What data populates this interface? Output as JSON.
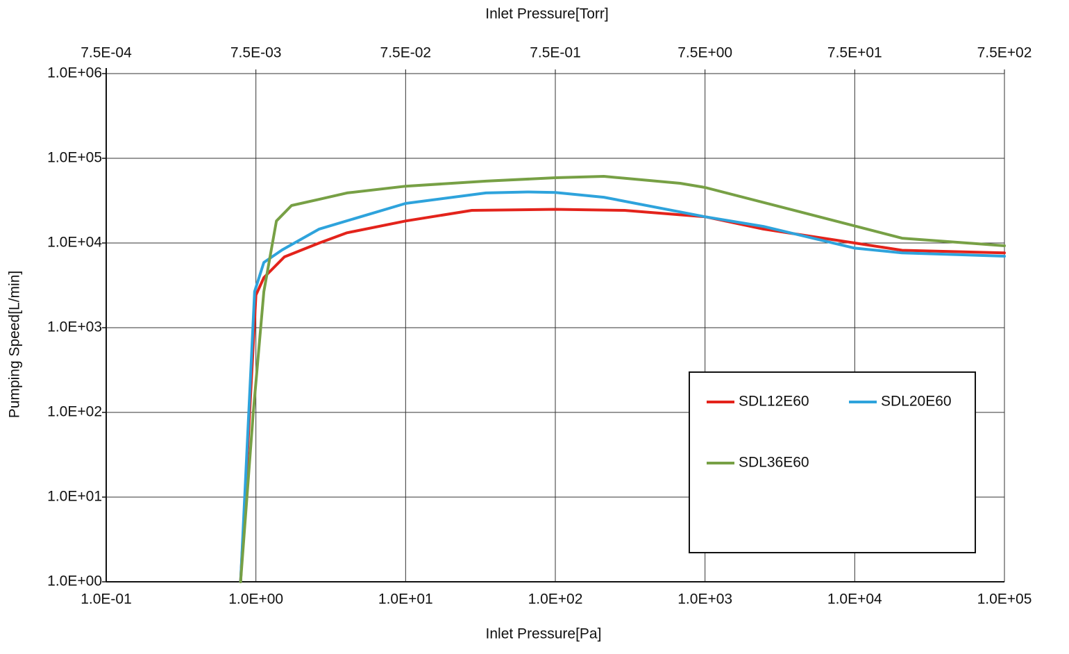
{
  "chart_data": {
    "type": "line",
    "x_label": "Inlet Pressure[Pa]",
    "x2_label": "Inlet Pressure[Torr]",
    "y_label": "Pumping Speed[L/min]",
    "x_scale": "log",
    "y_scale": "log",
    "grid": true,
    "legend": "lower right",
    "xlim": [
      0.1,
      100000
    ],
    "xticks": [
      {
        "value": 0.1,
        "label": "1.0E-01"
      },
      {
        "value": 1,
        "label": "1.0E+00"
      },
      {
        "value": 10,
        "label": "1.0E+01"
      },
      {
        "value": 100,
        "label": "1.0E+02"
      },
      {
        "value": 1000,
        "label": "1.0E+03"
      },
      {
        "value": 10000,
        "label": "1.0E+04"
      },
      {
        "value": 100000,
        "label": "1.0E+05"
      }
    ],
    "x2lim": [
      0.00075,
      750
    ],
    "x2ticks": [
      {
        "value": 0.00075,
        "label": "7.5E-04"
      },
      {
        "value": 0.0075,
        "label": "7.5E-03"
      },
      {
        "value": 0.075,
        "label": "7.5E-02"
      },
      {
        "value": 0.75,
        "label": "7.5E-01"
      },
      {
        "value": 7.5,
        "label": "7.5E+00"
      },
      {
        "value": 75,
        "label": "7.5E+01"
      },
      {
        "value": 750,
        "label": "7.5E+02"
      }
    ],
    "ylim": [
      1,
      1000000
    ],
    "yticks": [
      {
        "value": 1,
        "label": "1.0E+00"
      },
      {
        "value": 10,
        "label": "1.0E+01"
      },
      {
        "value": 100,
        "label": "1.0E+02"
      },
      {
        "value": 1000,
        "label": "1.0E+03"
      },
      {
        "value": 10000,
        "label": "1.0E+04"
      },
      {
        "value": 100000,
        "label": "1.0E+05"
      },
      {
        "value": 1000000,
        "label": "1.0E+06"
      }
    ],
    "series": [
      {
        "name": "SDL12E60",
        "color": "#e3231b",
        "x": [
          0.79,
          1.0,
          1.13,
          1.55,
          2.65,
          4.06,
          10,
          27.7,
          100,
          290,
          1000,
          2450,
          10000,
          20700,
          100000
        ],
        "values": [
          1,
          2430,
          3900,
          6850,
          10000,
          13200,
          18200,
          24300,
          25000,
          24300,
          20400,
          14600,
          10000,
          8200,
          7650
        ]
      },
      {
        "name": "SDL20E60",
        "color": "#2ea3dc",
        "x": [
          0.79,
          0.98,
          1.13,
          1.5,
          2.65,
          10,
          34.4,
          65,
          100,
          211,
          1000,
          2450,
          10000,
          20700,
          100000
        ],
        "values": [
          1,
          2670,
          5900,
          8300,
          14600,
          29300,
          39000,
          40000,
          39500,
          34700,
          20400,
          15700,
          8700,
          7650,
          6980
        ]
      },
      {
        "name": "SDL36E60",
        "color": "#77a045",
        "x": [
          0.79,
          0.96,
          1.13,
          1.37,
          1.73,
          2.65,
          4.06,
          10,
          34.4,
          100,
          211,
          682,
          1000,
          10000,
          20700,
          100000
        ],
        "values": [
          1,
          98,
          2670,
          18200,
          27700,
          32800,
          39000,
          46800,
          53700,
          59000,
          61200,
          50700,
          45300,
          15900,
          11400,
          9270
        ]
      }
    ]
  }
}
